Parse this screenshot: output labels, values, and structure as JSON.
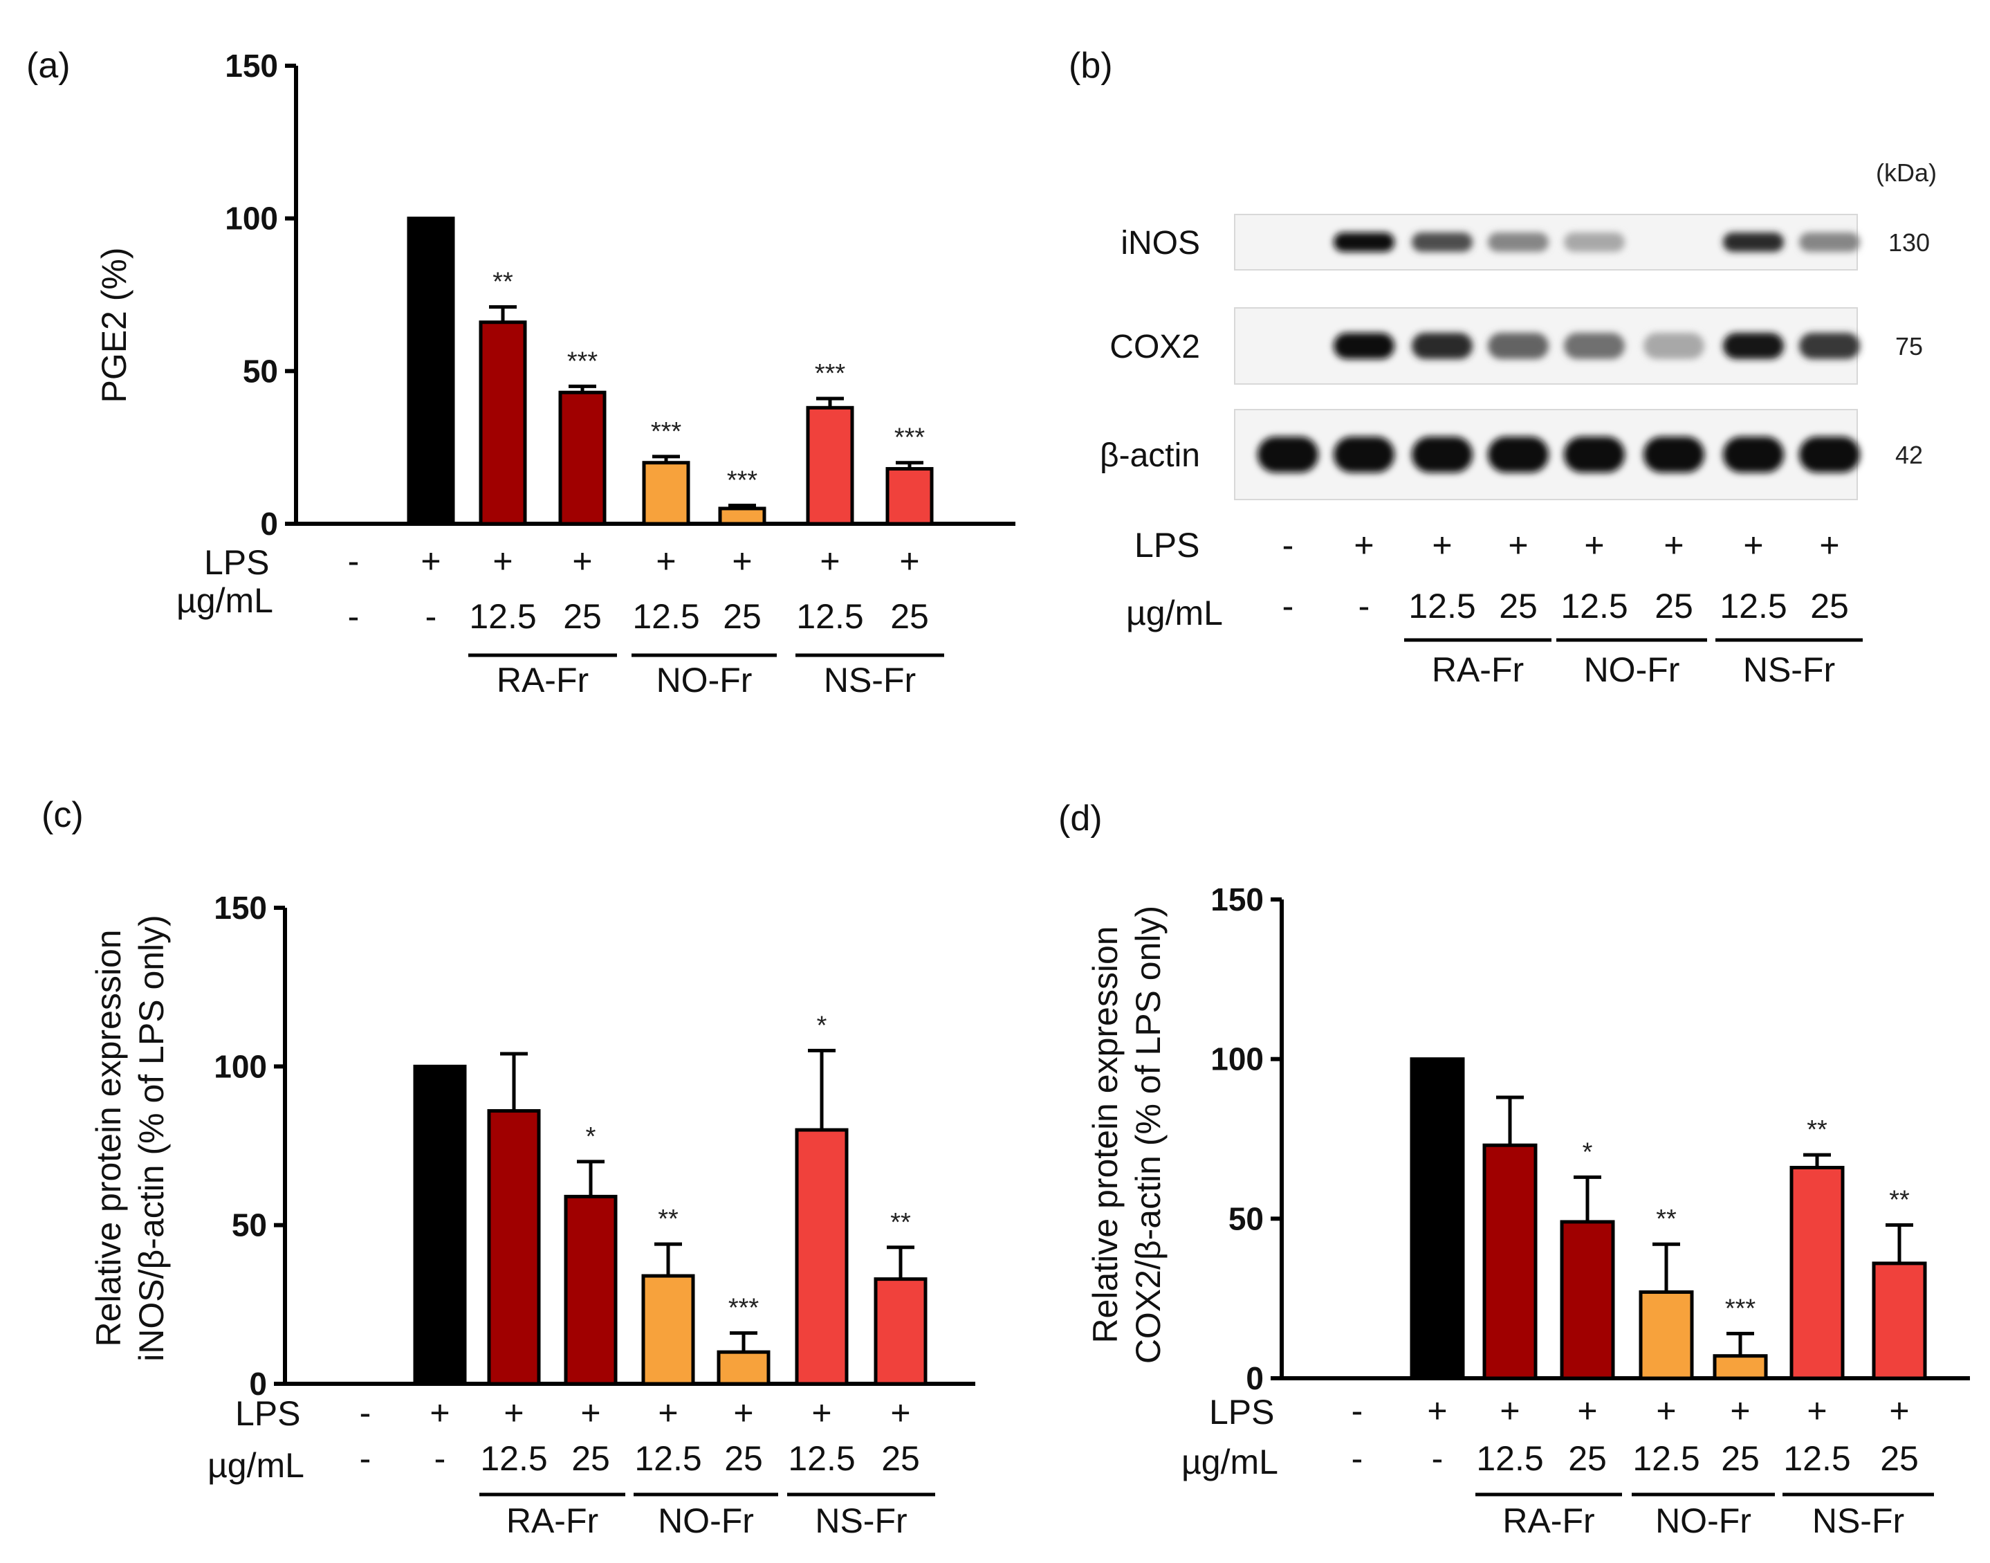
{
  "figure": {
    "panels": [
      {
        "letter": "(a)"
      },
      {
        "letter": "(b)"
      },
      {
        "letter": "(c)"
      },
      {
        "letter": "(d)"
      }
    ],
    "row_labels": {
      "lps": "LPS",
      "conc": "µg/mL"
    },
    "colors": {
      "black": "#000000",
      "dark_red": "#a00000",
      "orange": "#f7a23c",
      "red": "#f0413c"
    }
  },
  "chart_data": [
    {
      "type": "bar",
      "panel": "(a)",
      "ylabel": "PGE2 (%)",
      "ylim": [
        0,
        150
      ],
      "yticks": [
        "0",
        "50",
        "100",
        "150"
      ],
      "lps": [
        "-",
        "+",
        "+",
        "+",
        "+",
        "+",
        "+",
        "+"
      ],
      "conc": [
        "-",
        "-",
        "12.5",
        "25",
        "12.5",
        "25",
        "12.5",
        "25"
      ],
      "groups": [
        "RA-Fr",
        "NO-Fr",
        "NS-Fr"
      ],
      "values": [
        0,
        100,
        66,
        43,
        20,
        5,
        38,
        18
      ],
      "errors": [
        0,
        0,
        5,
        2,
        2,
        1,
        3,
        2
      ],
      "significance": [
        "",
        "",
        "**",
        "***",
        "***",
        "***",
        "***",
        "***"
      ],
      "colors": [
        "#000000",
        "#000000",
        "#a00000",
        "#a00000",
        "#f7a23c",
        "#f7a23c",
        "#f0413c",
        "#f0413c"
      ]
    },
    {
      "type": "bar",
      "panel": "(c)",
      "ylabel": "Relative protein expression",
      "ylabel2": "iNOS/β-actin (% of LPS only)",
      "ylim": [
        0,
        150
      ],
      "yticks": [
        "0",
        "50",
        "100",
        "150"
      ],
      "lps": [
        "-",
        "+",
        "+",
        "+",
        "+",
        "+",
        "+",
        "+"
      ],
      "conc": [
        "-",
        "-",
        "12.5",
        "25",
        "12.5",
        "25",
        "12.5",
        "25"
      ],
      "groups": [
        "RA-Fr",
        "NO-Fr",
        "NS-Fr"
      ],
      "values": [
        0,
        100,
        86,
        59,
        34,
        10,
        80,
        33
      ],
      "errors": [
        0,
        0,
        18,
        11,
        10,
        6,
        25,
        10
      ],
      "significance": [
        "",
        "",
        "",
        "*",
        "**",
        "***",
        "*",
        "**"
      ],
      "colors": [
        "#000000",
        "#000000",
        "#a00000",
        "#a00000",
        "#f7a23c",
        "#f7a23c",
        "#f0413c",
        "#f0413c"
      ]
    },
    {
      "type": "bar",
      "panel": "(d)",
      "ylabel": "Relative protein expression",
      "ylabel2": "COX2/β-actin (% of LPS only)",
      "ylim": [
        0,
        150
      ],
      "yticks": [
        "0",
        "50",
        "100",
        "150"
      ],
      "lps": [
        "-",
        "+",
        "+",
        "+",
        "+",
        "+",
        "+",
        "+"
      ],
      "conc": [
        "-",
        "-",
        "12.5",
        "25",
        "12.5",
        "25",
        "12.5",
        "25"
      ],
      "groups": [
        "RA-Fr",
        "NO-Fr",
        "NS-Fr"
      ],
      "values": [
        0,
        100,
        73,
        49,
        27,
        7,
        66,
        36
      ],
      "errors": [
        0,
        0,
        15,
        14,
        15,
        7,
        4,
        12
      ],
      "significance": [
        "",
        "",
        "",
        "*",
        "**",
        "***",
        "**",
        "**"
      ],
      "colors": [
        "#000000",
        "#000000",
        "#a00000",
        "#a00000",
        "#f7a23c",
        "#f7a23c",
        "#f0413c",
        "#f0413c"
      ]
    }
  ],
  "western_blot": {
    "kda_label": "(kDa)",
    "rows": [
      {
        "label": "iNOS",
        "kda": "130",
        "intensity": [
          0,
          1.0,
          0.7,
          0.45,
          0.3,
          0,
          0.85,
          0.45
        ]
      },
      {
        "label": "COX2",
        "kda": "75",
        "intensity": [
          0,
          1.0,
          0.85,
          0.6,
          0.55,
          0.3,
          0.95,
          0.8
        ]
      },
      {
        "label": "β-actin",
        "kda": "42",
        "intensity": [
          1,
          1,
          1,
          1,
          1,
          1,
          1,
          1
        ]
      }
    ],
    "lps": [
      "-",
      "+",
      "+",
      "+",
      "+",
      "+",
      "+",
      "+"
    ],
    "conc": [
      "-",
      "-",
      "12.5",
      "25",
      "12.5",
      "25",
      "12.5",
      "25"
    ],
    "groups": [
      "RA-Fr",
      "NO-Fr",
      "NS-Fr"
    ]
  }
}
